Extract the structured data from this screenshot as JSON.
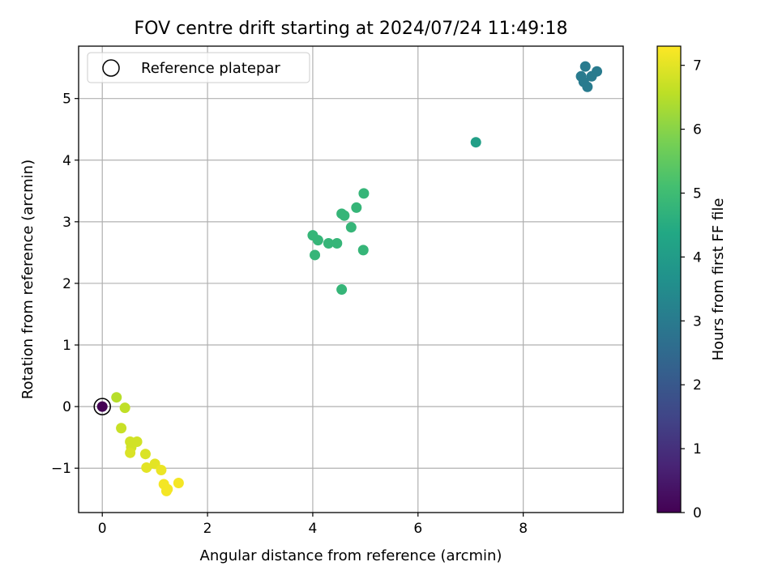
{
  "chart_data": {
    "type": "scatter",
    "title": "FOV centre drift starting at 2024/07/24 11:49:18",
    "xlabel": "Angular distance from reference (arcmin)",
    "ylabel": "Rotation from reference (arcmin)",
    "xlim": [
      -0.45,
      9.9
    ],
    "ylim": [
      -1.72,
      5.85
    ],
    "xticks": [
      0,
      2,
      4,
      6,
      8
    ],
    "yticks": [
      -1,
      0,
      1,
      2,
      3,
      4,
      5
    ],
    "grid": true,
    "legend": {
      "position": "top-left",
      "entries": [
        "Reference platepar"
      ]
    },
    "colorbar": {
      "label": "Hours from first FF file",
      "range": [
        0,
        7.3
      ],
      "ticks": [
        0,
        1,
        2,
        3,
        4,
        5,
        6,
        7
      ],
      "colormap": "viridis"
    },
    "reference_point": {
      "x": 0,
      "y": 0,
      "hours": 0
    },
    "points": [
      {
        "x": 9.18,
        "y": 5.52,
        "hours": 3.0
      },
      {
        "x": 9.4,
        "y": 5.44,
        "hours": 3.0
      },
      {
        "x": 9.1,
        "y": 5.36,
        "hours": 3.0
      },
      {
        "x": 9.3,
        "y": 5.36,
        "hours": 3.0
      },
      {
        "x": 9.15,
        "y": 5.27,
        "hours": 3.0
      },
      {
        "x": 9.22,
        "y": 5.19,
        "hours": 3.0
      },
      {
        "x": 7.1,
        "y": 4.29,
        "hours": 4.1
      },
      {
        "x": 4.97,
        "y": 3.46,
        "hours": 4.8
      },
      {
        "x": 4.83,
        "y": 3.23,
        "hours": 4.8
      },
      {
        "x": 4.55,
        "y": 3.13,
        "hours": 4.8
      },
      {
        "x": 4.6,
        "y": 3.1,
        "hours": 4.8
      },
      {
        "x": 4.73,
        "y": 2.91,
        "hours": 4.8
      },
      {
        "x": 4.0,
        "y": 2.78,
        "hours": 4.8
      },
      {
        "x": 4.1,
        "y": 2.7,
        "hours": 4.8
      },
      {
        "x": 4.3,
        "y": 2.65,
        "hours": 4.8
      },
      {
        "x": 4.46,
        "y": 2.65,
        "hours": 4.8
      },
      {
        "x": 4.96,
        "y": 2.54,
        "hours": 4.8
      },
      {
        "x": 4.04,
        "y": 2.46,
        "hours": 4.8
      },
      {
        "x": 4.55,
        "y": 1.9,
        "hours": 4.8
      },
      {
        "x": 0.27,
        "y": 0.15,
        "hours": 6.5
      },
      {
        "x": 0.43,
        "y": -0.02,
        "hours": 6.6
      },
      {
        "x": 0.36,
        "y": -0.35,
        "hours": 6.7
      },
      {
        "x": 0.53,
        "y": -0.57,
        "hours": 6.8
      },
      {
        "x": 0.66,
        "y": -0.57,
        "hours": 6.8
      },
      {
        "x": 0.55,
        "y": -0.66,
        "hours": 6.8
      },
      {
        "x": 0.53,
        "y": -0.75,
        "hours": 6.9
      },
      {
        "x": 0.82,
        "y": -0.77,
        "hours": 6.9
      },
      {
        "x": 1.0,
        "y": -0.93,
        "hours": 7.0
      },
      {
        "x": 0.84,
        "y": -0.99,
        "hours": 7.0
      },
      {
        "x": 1.12,
        "y": -1.03,
        "hours": 7.1
      },
      {
        "x": 1.45,
        "y": -1.24,
        "hours": 7.2
      },
      {
        "x": 1.17,
        "y": -1.26,
        "hours": 7.2
      },
      {
        "x": 1.24,
        "y": -1.34,
        "hours": 7.2
      },
      {
        "x": 1.22,
        "y": -1.37,
        "hours": 7.2
      }
    ]
  }
}
